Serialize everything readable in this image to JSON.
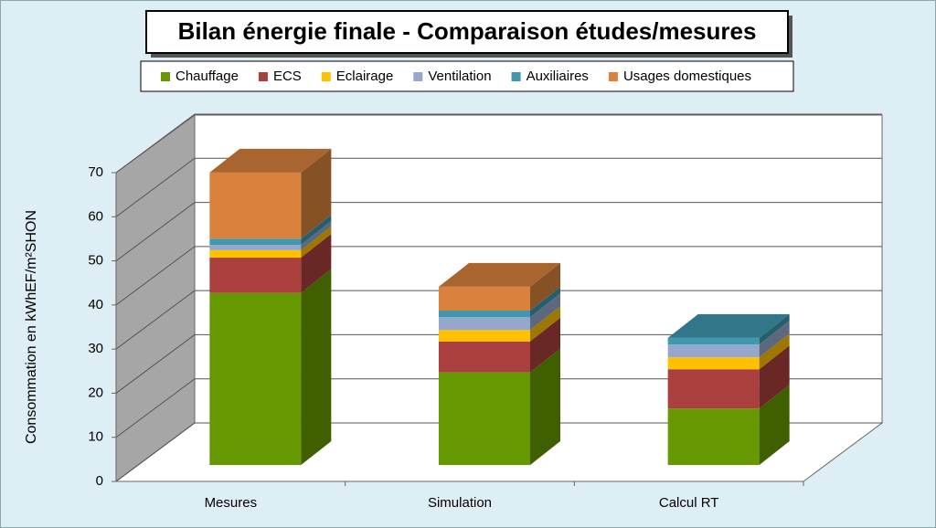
{
  "chart_data": {
    "type": "bar3d_stacked",
    "title": "Bilan énergie finale - Comparaison études/mesures",
    "y_label": "Consommation en kWhEF/m²SHON",
    "categories": [
      "Mesures",
      "Simulation",
      "Calcul RT"
    ],
    "series": [
      {
        "name": "Chauffage",
        "color": "#669900",
        "values": [
          39,
          21,
          12.8
        ]
      },
      {
        "name": "ECS",
        "color": "#a9403e",
        "values": [
          8,
          7,
          8.9
        ]
      },
      {
        "name": "Eclairage",
        "color": "#ffc000",
        "values": [
          1.7,
          2.6,
          2.7
        ]
      },
      {
        "name": "Ventilation",
        "color": "#95a8cc",
        "values": [
          1.2,
          2.9,
          2.9
        ]
      },
      {
        "name": "Auxiliaires",
        "color": "#3f98b0",
        "values": [
          1.4,
          1.5,
          1.5
        ]
      },
      {
        "name": "Usages domestiques",
        "color": "#d9823e",
        "values": [
          15,
          5.4,
          0
        ]
      }
    ],
    "ylim": [
      0,
      70
    ],
    "yticks": [
      0,
      10,
      20,
      30,
      40,
      50,
      60,
      70
    ],
    "grid": true,
    "legend": "top"
  }
}
